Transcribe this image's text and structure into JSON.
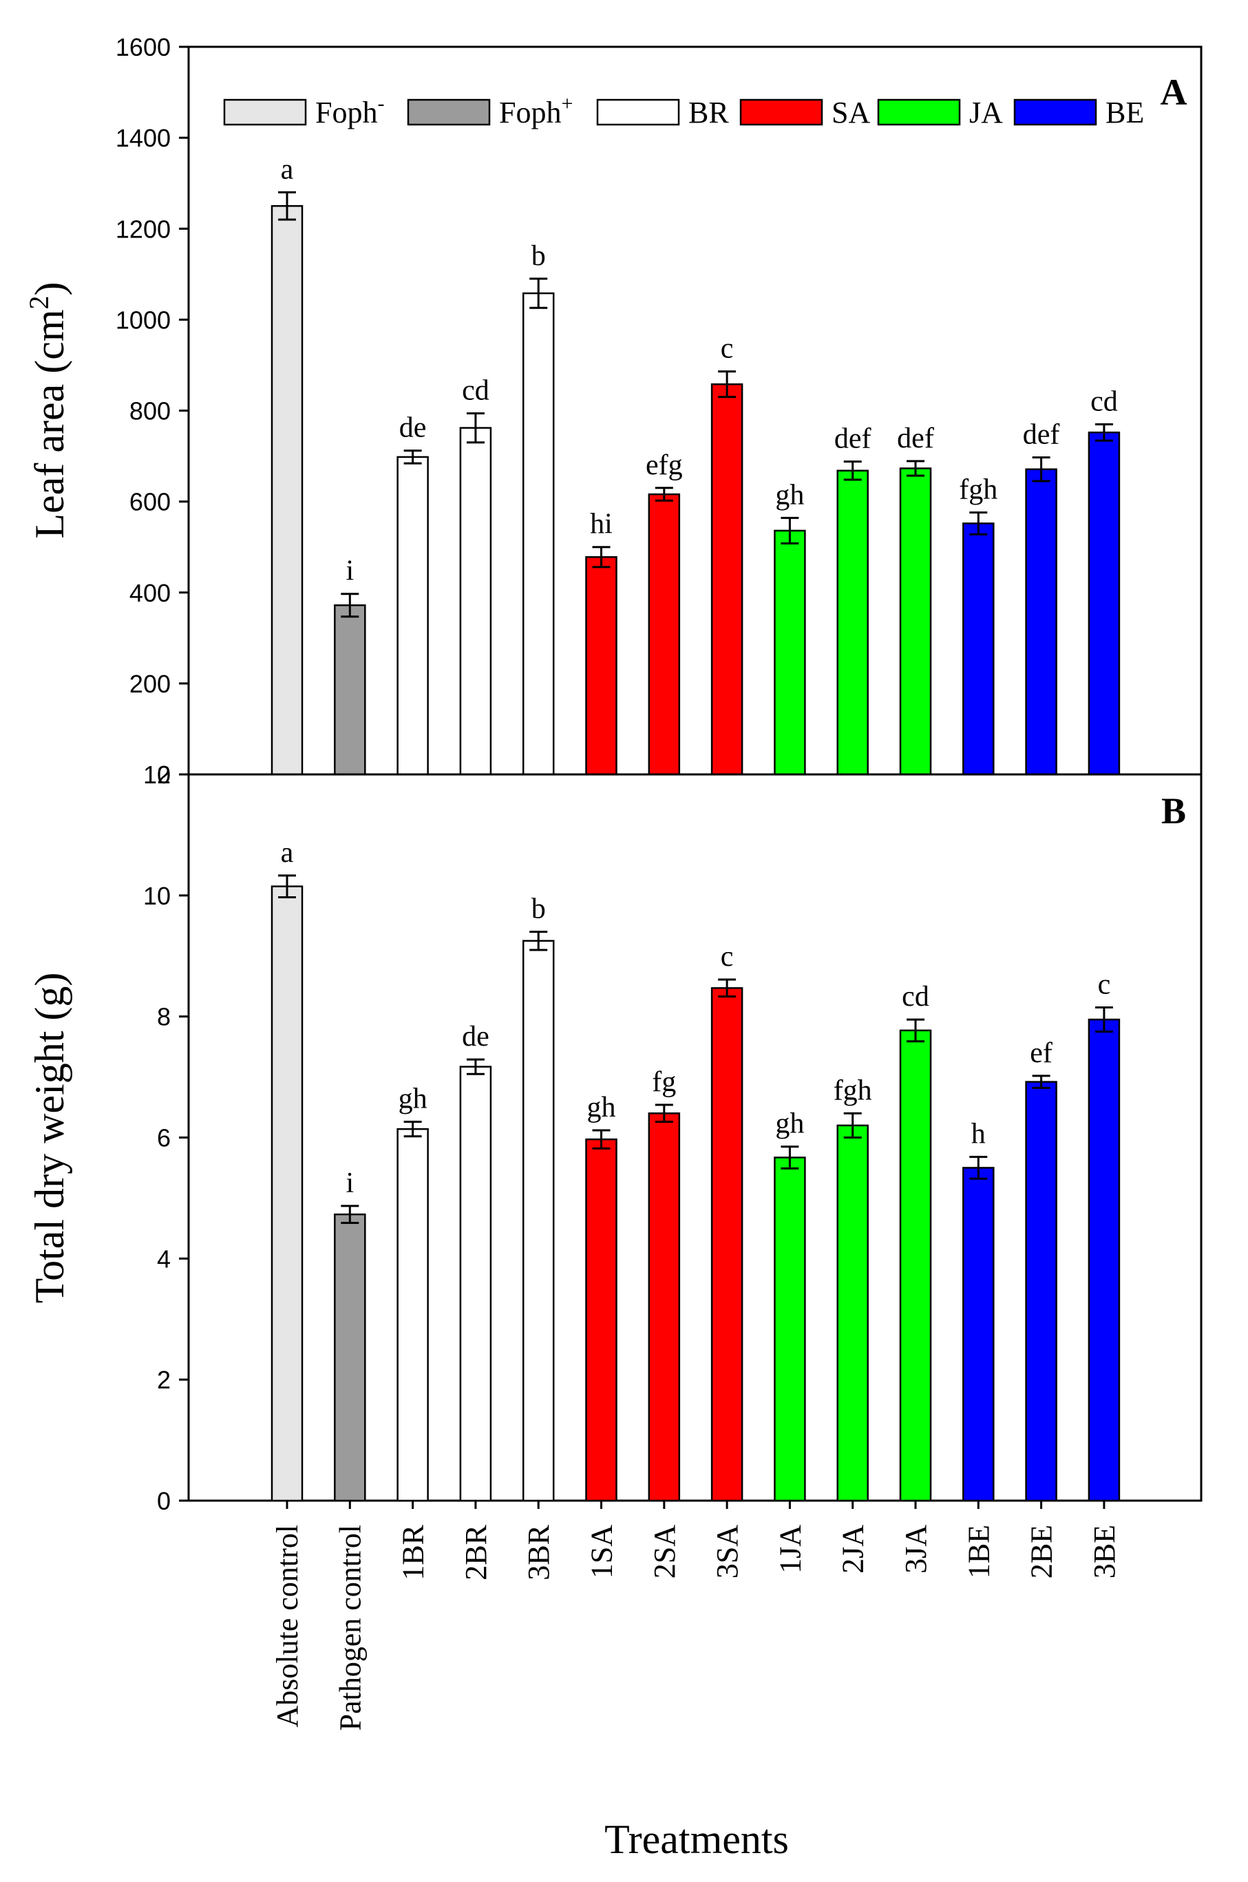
{
  "chart_data": [
    {
      "type": "bar",
      "panel_label": "A",
      "ylabel": "Leaf area (cm²)",
      "ylabel_parts": {
        "main": "Leaf area (cm",
        "sup": "2",
        "end": ")"
      },
      "ylim": [
        0,
        1600
      ],
      "yticks": [
        "0",
        "200",
        "400",
        "600",
        "800",
        "1000",
        "1200",
        "1400",
        "1600"
      ],
      "values": [
        1250,
        372,
        698,
        762,
        1058,
        478,
        616,
        858,
        536,
        668,
        673,
        552,
        671,
        752
      ],
      "errors": [
        30,
        25,
        14,
        32,
        32,
        22,
        14,
        28,
        28,
        20,
        16,
        24,
        26,
        18
      ],
      "letters": [
        "a",
        "i",
        "de",
        "cd",
        "b",
        "hi",
        "efg",
        "c",
        "gh",
        "def",
        "def",
        "fgh",
        "def",
        "cd"
      ],
      "legend": {
        "position": "top",
        "items": [
          {
            "label": "Foph",
            "sup": "-",
            "color": "#e6e6e6"
          },
          {
            "label": "Foph",
            "sup": "+",
            "color": "#9b9b9b"
          },
          {
            "label": "BR",
            "sup": "",
            "color": "#ffffff"
          },
          {
            "label": "SA",
            "sup": "",
            "color": "#ff0000"
          },
          {
            "label": "JA",
            "sup": "",
            "color": "#00ff00"
          },
          {
            "label": "BE",
            "sup": "",
            "color": "#0000ff"
          }
        ]
      }
    },
    {
      "type": "bar",
      "panel_label": "B",
      "ylabel": "Total dry weight (g)",
      "ylim": [
        0,
        12
      ],
      "yticks": [
        "0",
        "2",
        "4",
        "6",
        "8",
        "10",
        "12"
      ],
      "values": [
        10.15,
        4.73,
        6.14,
        7.17,
        9.25,
        5.97,
        6.4,
        8.47,
        5.67,
        6.2,
        7.77,
        5.5,
        6.92,
        7.95
      ],
      "errors": [
        0.18,
        0.14,
        0.12,
        0.12,
        0.15,
        0.15,
        0.14,
        0.14,
        0.18,
        0.2,
        0.18,
        0.18,
        0.1,
        0.2
      ],
      "letters": [
        "a",
        "i",
        "gh",
        "de",
        "b",
        "gh",
        "fg",
        "c",
        "gh",
        "fgh",
        "cd",
        "h",
        "ef",
        "c"
      ]
    }
  ],
  "categories": [
    "Absolute control",
    "Pathogen control",
    "1BR",
    "2BR",
    "3BR",
    "1SA",
    "2SA",
    "3SA",
    "1JA",
    "2JA",
    "3JA",
    "1BE",
    "2BE",
    "3BE"
  ],
  "bar_colors": [
    "#e6e6e6",
    "#9b9b9b",
    "#ffffff",
    "#ffffff",
    "#ffffff",
    "#ff0000",
    "#ff0000",
    "#ff0000",
    "#00ff00",
    "#00ff00",
    "#00ff00",
    "#0000ff",
    "#0000ff",
    "#0000ff"
  ],
  "xlabel": "Treatments",
  "grid": false
}
